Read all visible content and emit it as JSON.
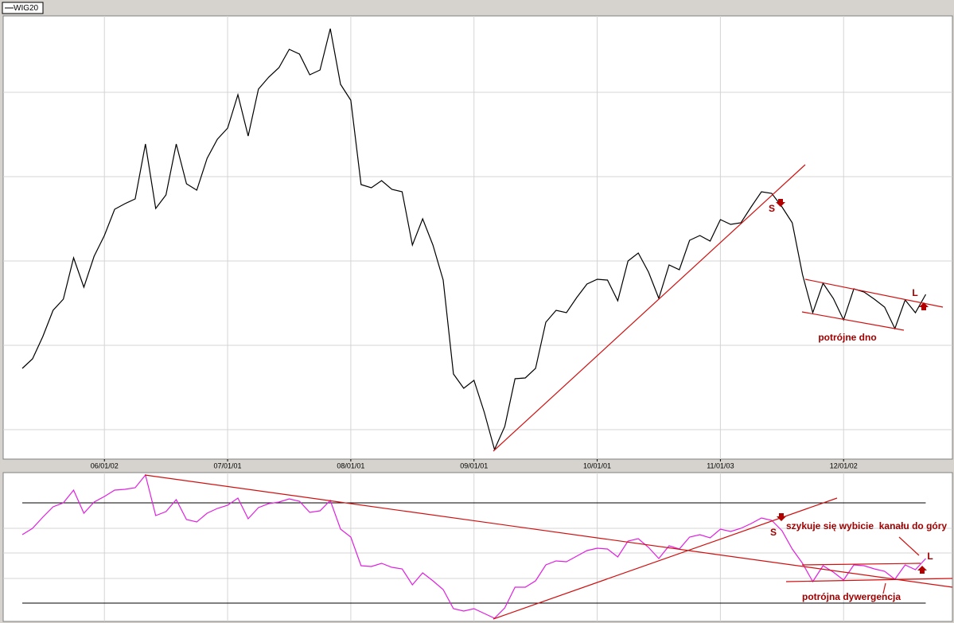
{
  "chart_data": [
    {
      "type": "line",
      "series": [
        {
          "name": "WIG20",
          "color": "#000000",
          "values": [
            114,
            126,
            154,
            187,
            201,
            253,
            216,
            255,
            281,
            314,
            321,
            327,
            396,
            315,
            332,
            396,
            346,
            338,
            378,
            402,
            416,
            458,
            406,
            465,
            480,
            492,
            515,
            509,
            483,
            489,
            541,
            471,
            451,
            345,
            341,
            350,
            339,
            336,
            269,
            302,
            269,
            225,
            107,
            89,
            99,
            59,
            12,
            41,
            101,
            102,
            114,
            172,
            187,
            184,
            203,
            220,
            226,
            225,
            199,
            249,
            259,
            235,
            202,
            244,
            238,
            275,
            281,
            274,
            301,
            295,
            297,
            317,
            336,
            334,
            317,
            297,
            232,
            184,
            221,
            202,
            175,
            214,
            210,
            201,
            191,
            164,
            200,
            184,
            207
          ]
        }
      ],
      "xlim": [
        -1.86,
        90.6
      ],
      "xticks": [
        {
          "value": 8,
          "label": "06/01/02"
        },
        {
          "value": 20,
          "label": "07/01/01"
        },
        {
          "value": 32,
          "label": "08/01/01"
        },
        {
          "value": 44,
          "label": "09/01/01"
        },
        {
          "value": 56,
          "label": "10/01/01"
        },
        {
          "value": 68,
          "label": "11/01/03"
        },
        {
          "value": 80,
          "label": "12/01/02"
        }
      ],
      "ylim": [
        0,
        557
      ],
      "ygrid": [
        37,
        143,
        249,
        355,
        461
      ],
      "annotations": [
        "S",
        "L",
        "potrójne dno"
      ]
    },
    {
      "type": "line",
      "series": [
        {
          "color": "#e020e0",
          "values": [
            109,
            117,
            131,
            144,
            149,
            165,
            136,
            150,
            157,
            165,
            166,
            168,
            184,
            133,
            138,
            153,
            128,
            125,
            136,
            142,
            146,
            155,
            129,
            143,
            148,
            150,
            154,
            151,
            137,
            139,
            152,
            116,
            106,
            70,
            69,
            73,
            68,
            66,
            46,
            61,
            51,
            40,
            16,
            13,
            16,
            10,
            4,
            17,
            43,
            43,
            51,
            71,
            76,
            75,
            82,
            89,
            92,
            91,
            81,
            101,
            104,
            93,
            79,
            95,
            91,
            106,
            109,
            105,
            116,
            113,
            117,
            123,
            130,
            127,
            114,
            91,
            73,
            50,
            70,
            62,
            52,
            71,
            70,
            66,
            63,
            53,
            71,
            65,
            79
          ]
        }
      ],
      "xlim": [
        -1.86,
        90.6
      ],
      "xgrid": [
        8,
        20,
        32,
        44,
        56,
        68,
        80
      ],
      "ylim": [
        0,
        187
      ],
      "ygrid": [
        54,
        86,
        117
      ],
      "hlines": [
        23,
        149
      ],
      "annotations": [
        "S",
        "szykuje się wybicie  kanału do góry",
        "L",
        "potrójna dywergencja"
      ]
    }
  ]
}
